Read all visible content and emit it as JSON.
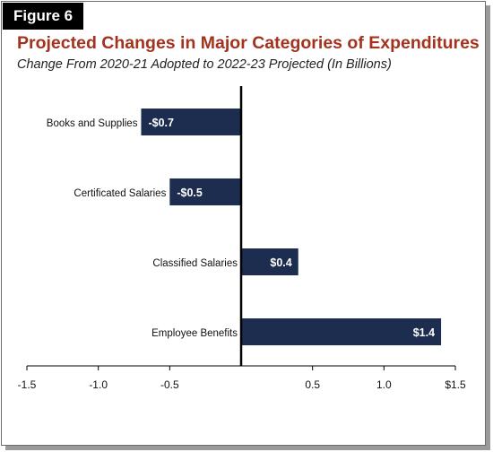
{
  "figure_label": "Figure 6",
  "title": "Projected Changes in Major Categories of Expenditures",
  "subtitle": "Change From 2020-21 Adopted to 2022-23 Projected (In Billions)",
  "colors": {
    "bar": "#1c2d4f",
    "title": "#a3321f",
    "label_bg": "#000000"
  },
  "chart_data": {
    "type": "bar",
    "orientation": "horizontal",
    "categories": [
      "Books and Supplies",
      "Certificated Salaries",
      "Classified Salaries",
      "Employee Benefits"
    ],
    "values": [
      -0.7,
      -0.5,
      0.4,
      1.4
    ],
    "data_labels": [
      "-$0.7",
      "-$0.5",
      "$0.4",
      "$1.4"
    ],
    "xlim": [
      -1.5,
      1.5
    ],
    "xticks": [
      -1.5,
      -1.0,
      -0.5,
      0.5,
      1.0,
      1.5
    ],
    "xtick_labels": [
      "-1.5",
      "-1.0",
      "-0.5",
      "0.5",
      "1.0",
      "$1.5"
    ],
    "grid": false
  }
}
